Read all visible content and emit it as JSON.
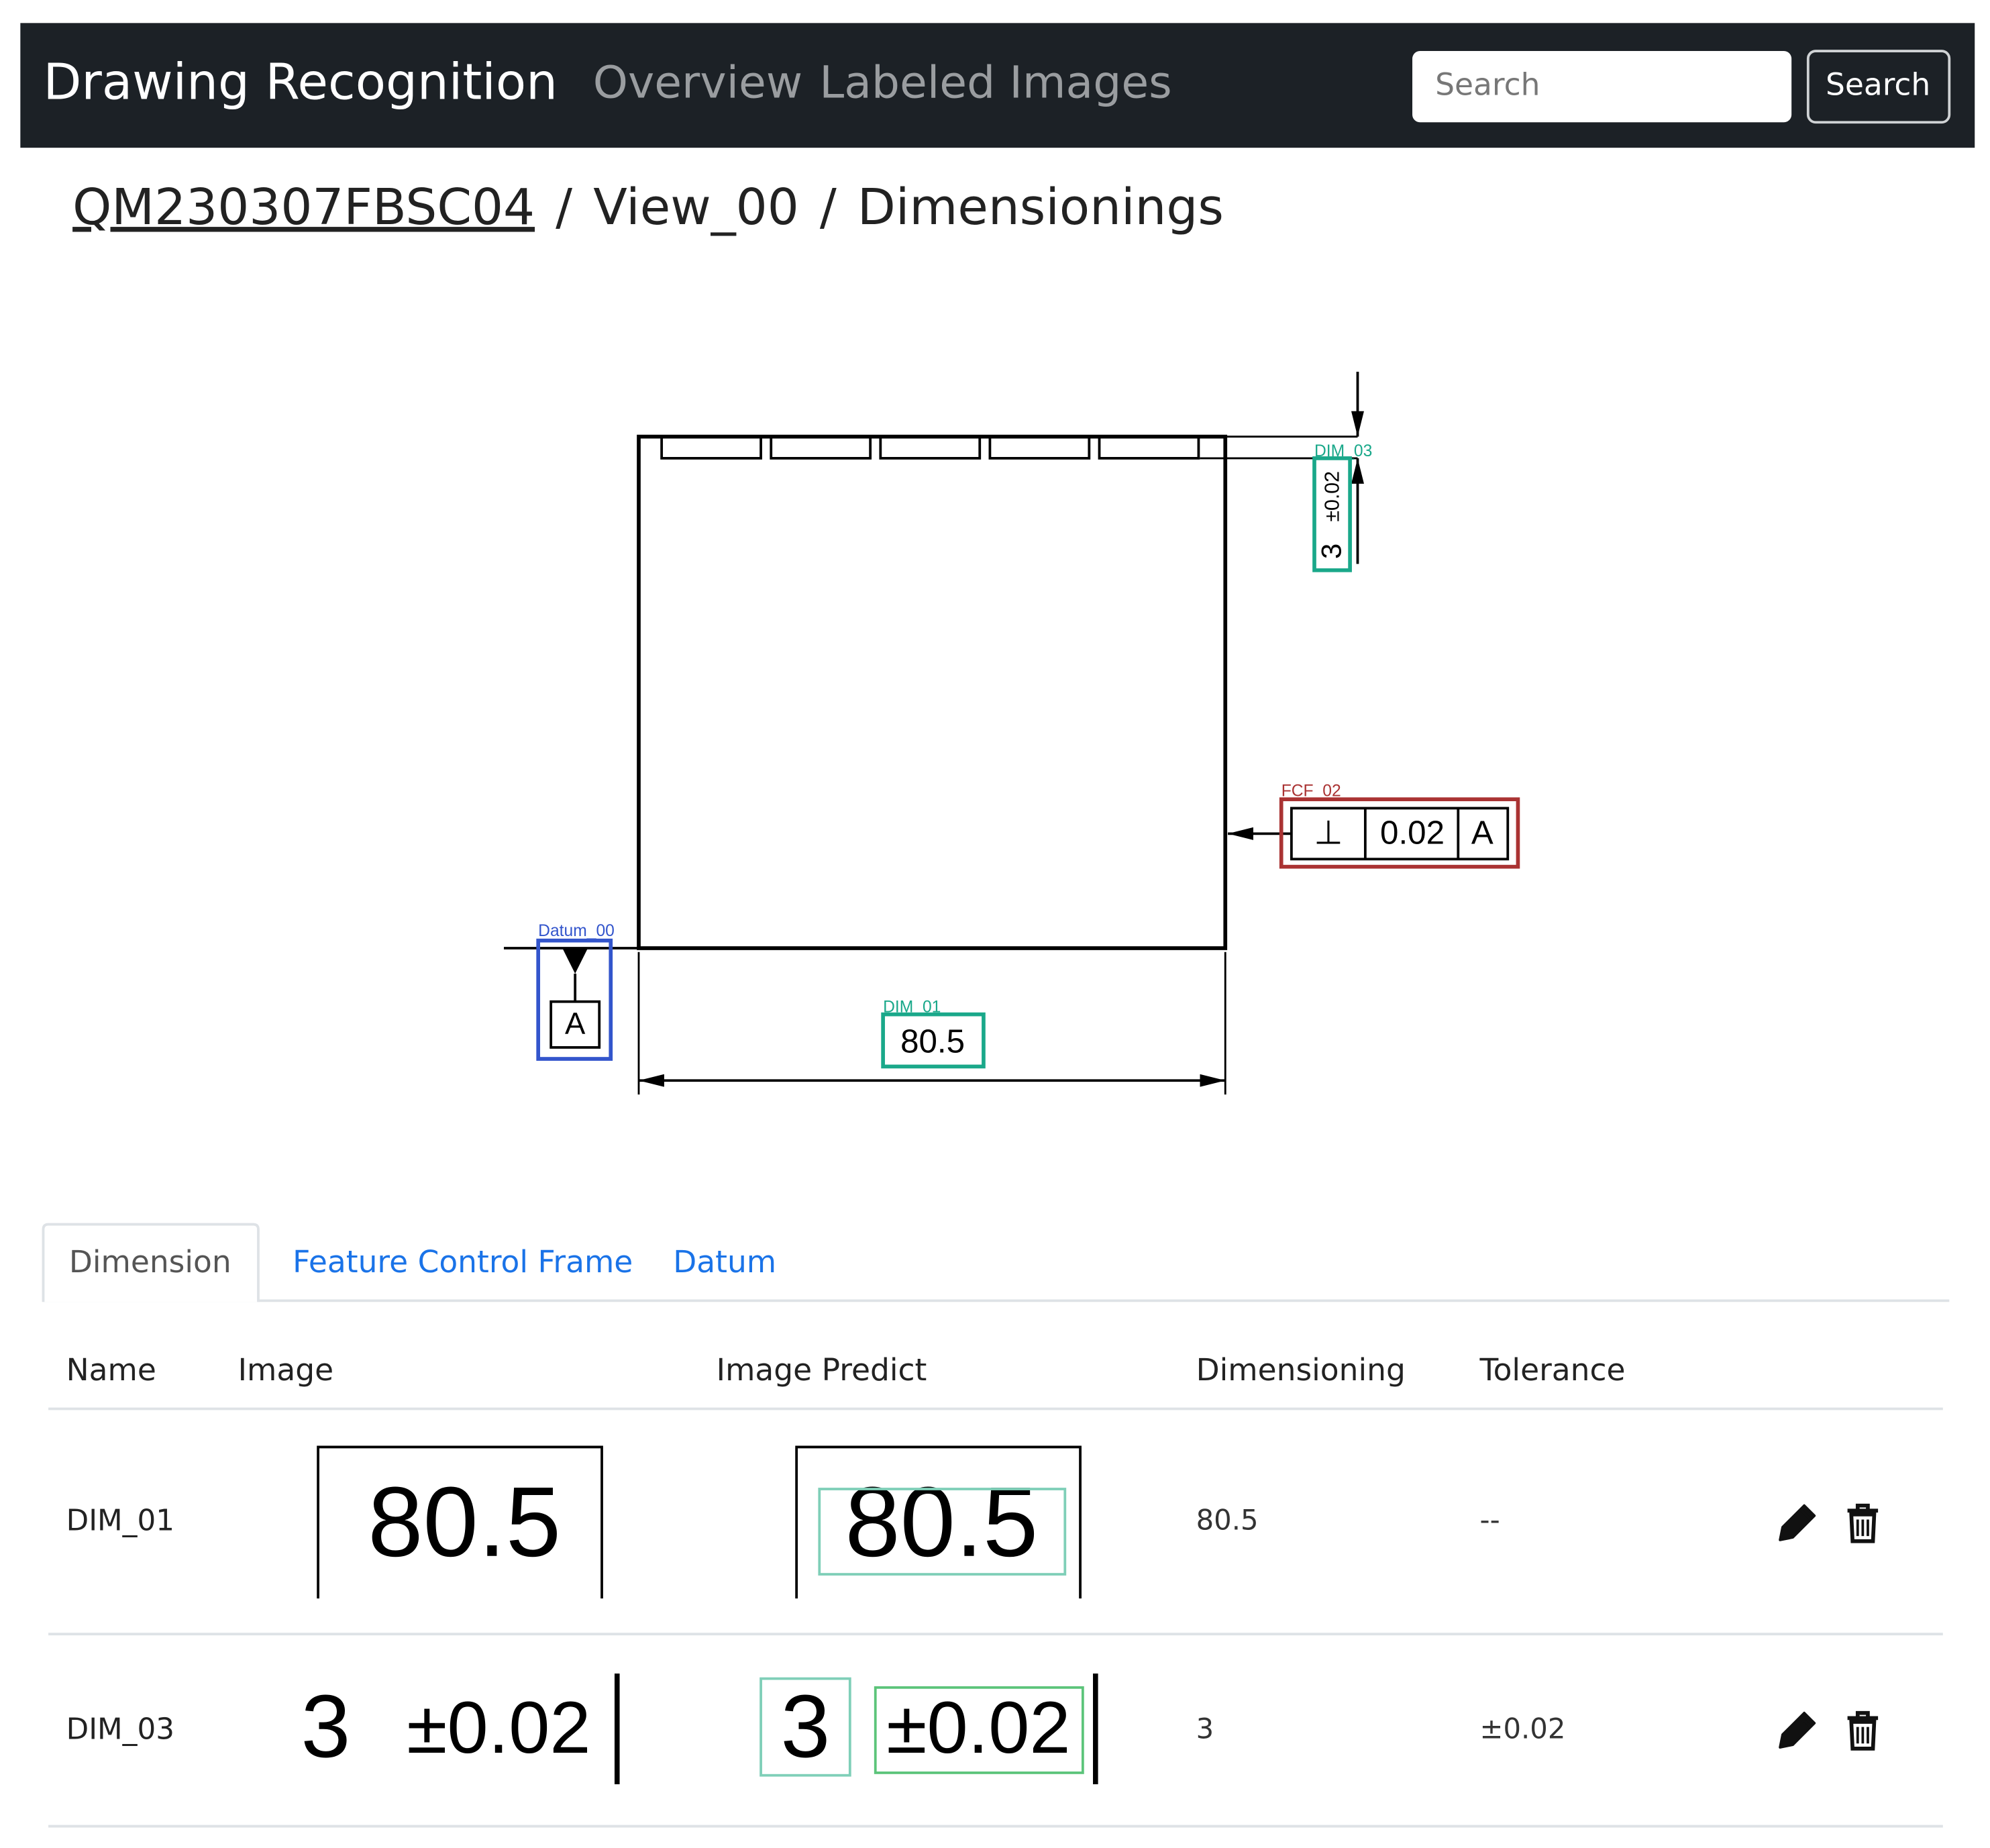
{
  "navbar": {
    "brand": "Drawing Recognition",
    "links": [
      "Overview",
      "Labeled Images"
    ],
    "search_placeholder": "Search",
    "search_button": "Search"
  },
  "breadcrumb": {
    "items": [
      "QM230307FBSC04",
      "View_00",
      "Dimensionings"
    ],
    "separator": "/"
  },
  "drawing": {
    "annotations": [
      {
        "label": "DIM_03",
        "texts": [
          "3",
          "±0.02"
        ]
      },
      {
        "label": "FCF_02",
        "texts": [
          "⊥",
          "0.02",
          "A"
        ]
      },
      {
        "label": "Datum_00",
        "texts": [
          "A"
        ]
      },
      {
        "label": "DIM_01",
        "texts": [
          "80.5"
        ]
      }
    ]
  },
  "tabs": [
    "Dimension",
    "Feature Control Frame",
    "Datum"
  ],
  "table": {
    "headers": [
      "Name",
      "Image",
      "Image Predict",
      "Dimensioning",
      "Tolerance"
    ],
    "rows": [
      {
        "name": "DIM_01",
        "image_texts": [
          "80.5"
        ],
        "predict_texts": [
          "80.5"
        ],
        "dimensioning": "80.5",
        "tolerance": "--"
      },
      {
        "name": "DIM_03",
        "image_texts": [
          "3",
          "±0.02"
        ],
        "predict_texts": [
          "3",
          "±0.02"
        ],
        "dimensioning": "3",
        "tolerance": "±0.02"
      }
    ]
  }
}
